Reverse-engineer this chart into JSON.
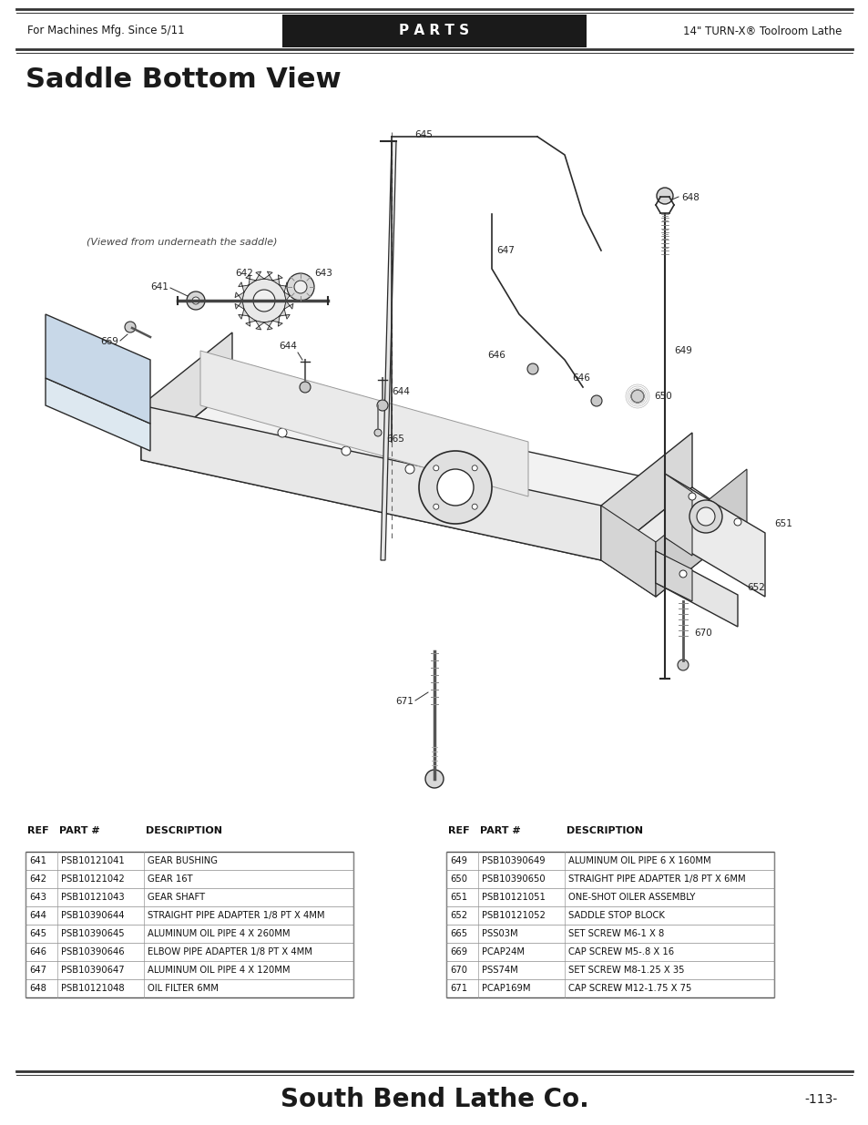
{
  "header_left": "For Machines Mfg. Since 5/11",
  "header_center": "P A R T S",
  "header_right": "14\" TURN-X® Toolroom Lathe",
  "page_title": "Saddle Bottom View",
  "diagram_note": "(Viewed from underneath the saddle)",
  "footer_company": "South Bend Lathe Co.",
  "footer_page": "-113-",
  "table_headers": [
    "REF",
    "PART #",
    "DESCRIPTION"
  ],
  "table_left": [
    [
      "641",
      "PSB10121041",
      "GEAR BUSHING"
    ],
    [
      "642",
      "PSB10121042",
      "GEAR 16T"
    ],
    [
      "643",
      "PSB10121043",
      "GEAR SHAFT"
    ],
    [
      "644",
      "PSB10390644",
      "STRAIGHT PIPE ADAPTER 1/8 PT X 4MM"
    ],
    [
      "645",
      "PSB10390645",
      "ALUMINUM OIL PIPE 4 X 260MM"
    ],
    [
      "646",
      "PSB10390646",
      "ELBOW PIPE ADAPTER 1/8 PT X 4MM"
    ],
    [
      "647",
      "PSB10390647",
      "ALUMINUM OIL PIPE 4 X 120MM"
    ],
    [
      "648",
      "PSB10121048",
      "OIL FILTER 6MM"
    ]
  ],
  "table_right": [
    [
      "649",
      "PSB10390649",
      "ALUMINUM OIL PIPE 6 X 160MM"
    ],
    [
      "650",
      "PSB10390650",
      "STRAIGHT PIPE ADAPTER 1/8 PT X 6MM"
    ],
    [
      "651",
      "PSB10121051",
      "ONE-SHOT OILER ASSEMBLY"
    ],
    [
      "652",
      "PSB10121052",
      "SADDLE STOP BLOCK"
    ],
    [
      "665",
      "PSS03M",
      "SET SCREW M6-1 X 8"
    ],
    [
      "669",
      "PCAP24M",
      "CAP SCREW M5-.8 X 16"
    ],
    [
      "670",
      "PSS74M",
      "SET SCREW M8-1.25 X 35"
    ],
    [
      "671",
      "PCAP169M",
      "CAP SCREW M12-1.75 X 75"
    ]
  ],
  "bg_color": "#ffffff",
  "header_bg": "#1a1a1a",
  "text_color": "#1a1a1a",
  "line_color": "#333333"
}
